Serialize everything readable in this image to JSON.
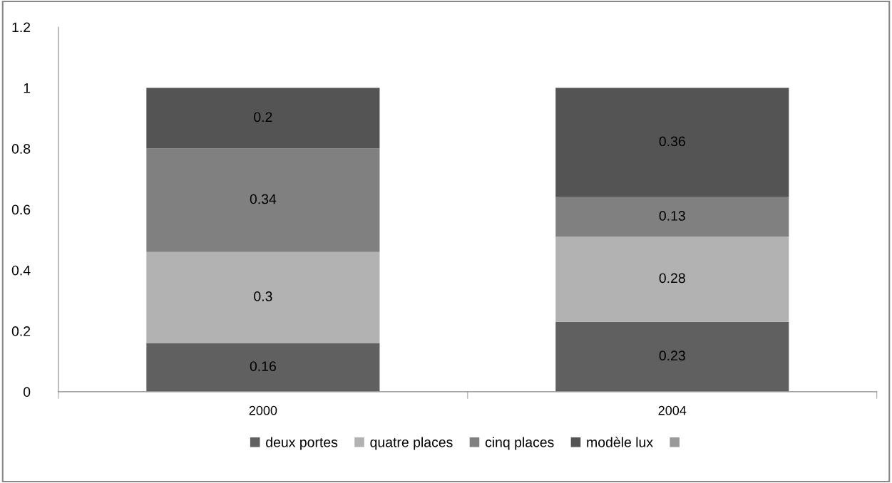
{
  "chart_data": {
    "type": "bar",
    "stacked": true,
    "categories": [
      "2000",
      "2004"
    ],
    "series": [
      {
        "name": "deux portes",
        "color": "#606060",
        "values": [
          0.16,
          0.23
        ]
      },
      {
        "name": "quatre places",
        "color": "#b2b2b2",
        "values": [
          0.3,
          0.28
        ]
      },
      {
        "name": "cinq places",
        "color": "#808080",
        "values": [
          0.34,
          0.13
        ]
      },
      {
        "name": "modèle lux",
        "color": "#545454",
        "values": [
          0.2,
          0.36
        ]
      },
      {
        "color": "#999999",
        "values": [
          null,
          null
        ]
      }
    ],
    "ylim": [
      0,
      1.2
    ],
    "yticks": [
      0,
      0.2,
      0.4,
      0.6,
      0.8,
      1,
      1.2
    ],
    "data_labels": true,
    "legend": "bottom",
    "grid": false
  }
}
